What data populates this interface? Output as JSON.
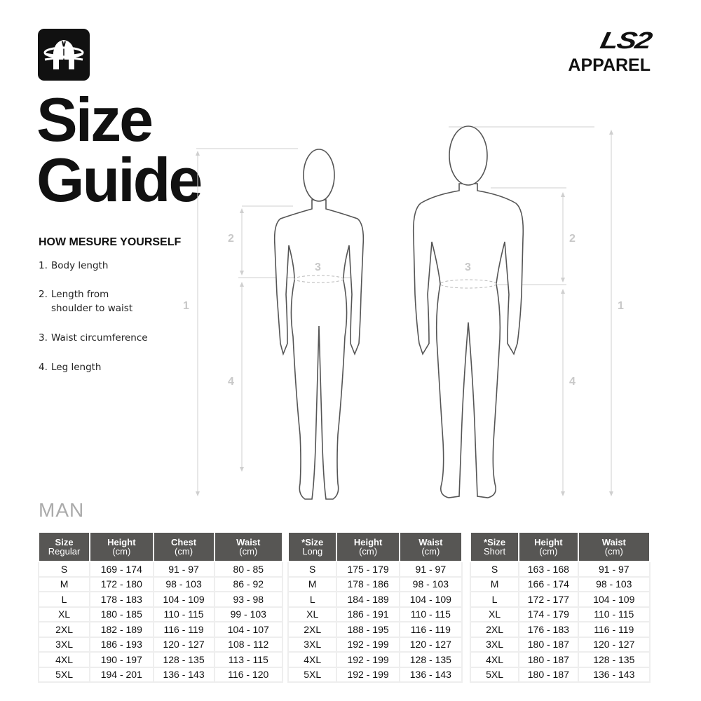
{
  "brand": {
    "logo_text": "LS2",
    "sub": "APPAREL"
  },
  "title": {
    "line1": "Size",
    "line2": "Guide"
  },
  "how_to": {
    "heading": "HOW MESURE YOURSELF",
    "steps": [
      {
        "n": "1.",
        "text": "Body length"
      },
      {
        "n": "2.",
        "text": "Length from shoulder to waist"
      },
      {
        "n": "3.",
        "text": "Waist circumference"
      },
      {
        "n": "4.",
        "text": "Leg length"
      }
    ]
  },
  "measure_labels": {
    "m1": "1",
    "m2": "2",
    "m3": "3",
    "m4": "4"
  },
  "section": "MAN",
  "tables": {
    "regular": {
      "headers": [
        [
          "Size",
          "Regular"
        ],
        [
          "Height",
          "(cm)"
        ],
        [
          "Chest",
          "(cm)"
        ],
        [
          "Waist",
          "(cm)"
        ]
      ],
      "rows": [
        [
          "S",
          "169 - 174",
          "91 - 97",
          "80 - 85"
        ],
        [
          "M",
          "172 - 180",
          "98 - 103",
          "86 - 92"
        ],
        [
          "L",
          "178 - 183",
          "104 - 109",
          "93 - 98"
        ],
        [
          "XL",
          "180 - 185",
          "110 - 115",
          "99 - 103"
        ],
        [
          "2XL",
          "182 - 189",
          "116 - 119",
          "104 - 107"
        ],
        [
          "3XL",
          "186 - 193",
          "120 - 127",
          "108 - 112"
        ],
        [
          "4XL",
          "190 - 197",
          "128 - 135",
          "113 - 115"
        ],
        [
          "5XL",
          "194 - 201",
          "136 - 143",
          "116 - 120"
        ]
      ]
    },
    "long": {
      "headers": [
        [
          "*Size",
          "Long"
        ],
        [
          "Height",
          "(cm)"
        ],
        [
          "Waist",
          "(cm)"
        ]
      ],
      "rows": [
        [
          "S",
          "175 - 179",
          "91 - 97"
        ],
        [
          "M",
          "178 - 186",
          "98 - 103"
        ],
        [
          "L",
          "184 - 189",
          "104 - 109"
        ],
        [
          "XL",
          "186 - 191",
          "110 - 115"
        ],
        [
          "2XL",
          "188 - 195",
          "116 - 119"
        ],
        [
          "3XL",
          "192 - 199",
          "120 - 127"
        ],
        [
          "4XL",
          "192 - 199",
          "128 - 135"
        ],
        [
          "5XL",
          "192 - 199",
          "136 - 143"
        ]
      ]
    },
    "short": {
      "headers": [
        [
          "*Size",
          "Short"
        ],
        [
          "Height",
          "(cm)"
        ],
        [
          "Waist",
          "(cm)"
        ]
      ],
      "rows": [
        [
          "S",
          "163 - 168",
          "91 - 97"
        ],
        [
          "M",
          "166 - 174",
          "98 - 103"
        ],
        [
          "L",
          "172 - 177",
          "104 - 109"
        ],
        [
          "XL",
          "174 - 179",
          "110 - 115"
        ],
        [
          "2XL",
          "176 - 183",
          "116 - 119"
        ],
        [
          "3XL",
          "180 - 187",
          "120 - 127"
        ],
        [
          "4XL",
          "180 - 187",
          "128 - 135"
        ],
        [
          "5XL",
          "180 - 187",
          "136 - 143"
        ]
      ]
    }
  },
  "colors": {
    "header_bg": "#575654",
    "guide_lines": "#c8c8c8",
    "figure_stroke": "#555555"
  }
}
